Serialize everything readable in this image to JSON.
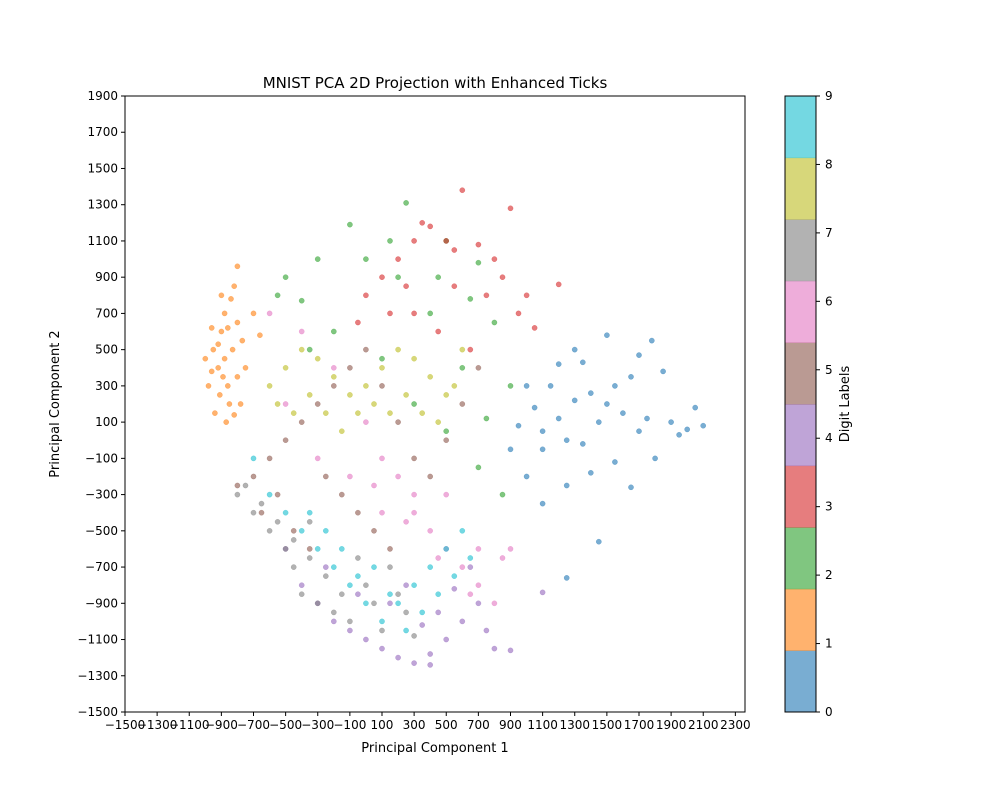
{
  "chart_data": {
    "type": "scatter",
    "title": "MNIST PCA 2D Projection with Enhanced Ticks",
    "xlabel": "Principal Component 1",
    "ylabel": "Principal Component 2",
    "xlim": [
      -1500,
      2360
    ],
    "ylim": [
      -1500,
      1900
    ],
    "x_ticks": [
      "−1500",
      "−1300",
      "−1100",
      "−900",
      "−700",
      "−500",
      "−300",
      "−100",
      "100",
      "300",
      "500",
      "700",
      "900",
      "1100",
      "1300",
      "1500",
      "1700",
      "1900",
      "2100",
      "2300"
    ],
    "y_ticks": [
      "−1500",
      "−1300",
      "−1100",
      "−900",
      "−700",
      "−500",
      "−300",
      "−100",
      "100",
      "300",
      "500",
      "700",
      "900",
      "1100",
      "1300",
      "1500",
      "1700",
      "1900"
    ],
    "grid": false,
    "marker_alpha": 0.6,
    "colorbar": {
      "label": "Digit Labels",
      "ticks": [
        "0",
        "1",
        "2",
        "3",
        "4",
        "5",
        "6",
        "7",
        "8",
        "9"
      ],
      "colors": [
        "#1f77b4",
        "#ff7f0e",
        "#2ca02c",
        "#d62728",
        "#9467bd",
        "#8c564b",
        "#e377c2",
        "#7f7f7f",
        "#bcbd22",
        "#17becf"
      ],
      "alpha": 0.6
    },
    "series": [
      {
        "label": 0,
        "color": "#1f77b4",
        "points": [
          [
            1300,
            220
          ],
          [
            1400,
            260
          ],
          [
            1200,
            120
          ],
          [
            1500,
            200
          ],
          [
            1600,
            150
          ],
          [
            1750,
            120
          ],
          [
            1900,
            100
          ],
          [
            2000,
            60
          ],
          [
            2100,
            80
          ],
          [
            2050,
            180
          ],
          [
            1850,
            380
          ],
          [
            1780,
            550
          ],
          [
            1700,
            470
          ],
          [
            1500,
            580
          ],
          [
            1350,
            430
          ],
          [
            1150,
            300
          ],
          [
            1050,
            180
          ],
          [
            950,
            80
          ],
          [
            900,
            -50
          ],
          [
            1000,
            -200
          ],
          [
            1100,
            -350
          ],
          [
            1250,
            -250
          ],
          [
            1400,
            -180
          ],
          [
            1550,
            -120
          ],
          [
            1650,
            -260
          ],
          [
            1800,
            -100
          ],
          [
            1450,
            -560
          ],
          [
            1250,
            -760
          ],
          [
            1000,
            300
          ],
          [
            1100,
            50
          ],
          [
            1250,
            0
          ],
          [
            1350,
            -20
          ],
          [
            1450,
            100
          ],
          [
            1550,
            300
          ],
          [
            1650,
            350
          ],
          [
            1300,
            500
          ],
          [
            1200,
            420
          ],
          [
            1100,
            -50
          ],
          [
            1700,
            50
          ],
          [
            1950,
            30
          ]
        ]
      },
      {
        "label": 1,
        "color": "#ff7f0e",
        "points": [
          [
            -950,
            500
          ],
          [
            -900,
            600
          ],
          [
            -880,
            700
          ],
          [
            -920,
            400
          ],
          [
            -860,
            300
          ],
          [
            -820,
            850
          ],
          [
            -800,
            960
          ],
          [
            -780,
            200
          ],
          [
            -750,
            400
          ],
          [
            -700,
            700
          ],
          [
            -660,
            580
          ],
          [
            -980,
            300
          ],
          [
            -1000,
            450
          ],
          [
            -940,
            150
          ],
          [
            -870,
            100
          ],
          [
            -830,
            500
          ],
          [
            -900,
            800
          ],
          [
            -960,
            620
          ],
          [
            -890,
            350
          ],
          [
            -850,
            200
          ],
          [
            -800,
            650
          ],
          [
            -770,
            550
          ],
          [
            -920,
            530
          ],
          [
            -880,
            450
          ],
          [
            -840,
            780
          ],
          [
            -910,
            250
          ],
          [
            -860,
            620
          ],
          [
            -800,
            350
          ],
          [
            -960,
            380
          ],
          [
            -820,
            140
          ]
        ]
      },
      {
        "label": 2,
        "color": "#2ca02c",
        "points": [
          [
            -400,
            770
          ],
          [
            -300,
            1000
          ],
          [
            -100,
            1190
          ],
          [
            250,
            1310
          ],
          [
            500,
            1100
          ],
          [
            700,
            980
          ],
          [
            900,
            300
          ],
          [
            800,
            650
          ],
          [
            -500,
            900
          ],
          [
            -200,
            600
          ],
          [
            100,
            450
          ],
          [
            300,
            200
          ],
          [
            500,
            50
          ],
          [
            700,
            -150
          ],
          [
            850,
            -300
          ],
          [
            600,
            400
          ],
          [
            400,
            700
          ],
          [
            200,
            900
          ],
          [
            0,
            1000
          ],
          [
            -350,
            500
          ],
          [
            150,
            1100
          ],
          [
            650,
            780
          ],
          [
            -550,
            800
          ],
          [
            450,
            900
          ],
          [
            750,
            120
          ]
        ]
      },
      {
        "label": 3,
        "color": "#d62728",
        "points": [
          [
            0,
            800
          ],
          [
            100,
            900
          ],
          [
            200,
            1000
          ],
          [
            300,
            1100
          ],
          [
            350,
            1200
          ],
          [
            400,
            1180
          ],
          [
            500,
            1100
          ],
          [
            550,
            1050
          ],
          [
            600,
            1380
          ],
          [
            700,
            1080
          ],
          [
            800,
            1000
          ],
          [
            900,
            1280
          ],
          [
            1000,
            800
          ],
          [
            1200,
            860
          ],
          [
            300,
            700
          ],
          [
            450,
            600
          ],
          [
            650,
            500
          ],
          [
            750,
            800
          ],
          [
            850,
            900
          ],
          [
            950,
            700
          ],
          [
            1050,
            620
          ],
          [
            -50,
            650
          ],
          [
            250,
            850
          ],
          [
            550,
            850
          ],
          [
            150,
            700
          ]
        ]
      },
      {
        "label": 4,
        "color": "#9467bd",
        "points": [
          [
            -500,
            -600
          ],
          [
            -400,
            -800
          ],
          [
            -300,
            -900
          ],
          [
            -200,
            -1000
          ],
          [
            -100,
            -1050
          ],
          [
            0,
            -1100
          ],
          [
            100,
            -1150
          ],
          [
            200,
            -1200
          ],
          [
            300,
            -1230
          ],
          [
            400,
            -1180
          ],
          [
            500,
            -1100
          ],
          [
            600,
            -1000
          ],
          [
            700,
            -900
          ],
          [
            800,
            -1150
          ],
          [
            900,
            -1160
          ],
          [
            650,
            -700
          ],
          [
            550,
            -820
          ],
          [
            450,
            -950
          ],
          [
            350,
            -1020
          ],
          [
            250,
            -800
          ],
          [
            150,
            -900
          ],
          [
            -50,
            -850
          ],
          [
            -250,
            -700
          ],
          [
            750,
            -1050
          ],
          [
            1100,
            -840
          ],
          [
            400,
            -1240
          ]
        ]
      },
      {
        "label": 5,
        "color": "#8c564b",
        "points": [
          [
            -700,
            -200
          ],
          [
            -600,
            -100
          ],
          [
            -500,
            0
          ],
          [
            -400,
            100
          ],
          [
            -300,
            200
          ],
          [
            -200,
            300
          ],
          [
            -100,
            400
          ],
          [
            0,
            500
          ],
          [
            100,
            300
          ],
          [
            200,
            100
          ],
          [
            300,
            -100
          ],
          [
            400,
            -200
          ],
          [
            500,
            0
          ],
          [
            600,
            200
          ],
          [
            700,
            400
          ],
          [
            -800,
            -250
          ],
          [
            -650,
            -400
          ],
          [
            -550,
            -300
          ],
          [
            -450,
            -500
          ],
          [
            -350,
            -600
          ],
          [
            -250,
            -200
          ],
          [
            -150,
            -300
          ],
          [
            -50,
            -400
          ],
          [
            50,
            -500
          ],
          [
            150,
            -600
          ]
        ]
      },
      {
        "label": 6,
        "color": "#e377c2",
        "points": [
          [
            -600,
            700
          ],
          [
            -400,
            600
          ],
          [
            -200,
            400
          ],
          [
            0,
            100
          ],
          [
            100,
            -100
          ],
          [
            200,
            -200
          ],
          [
            300,
            -400
          ],
          [
            400,
            -500
          ],
          [
            500,
            -600
          ],
          [
            600,
            -700
          ],
          [
            700,
            -800
          ],
          [
            800,
            -900
          ],
          [
            900,
            -600
          ],
          [
            700,
            -600
          ],
          [
            500,
            -300
          ],
          [
            300,
            -300
          ],
          [
            100,
            -400
          ],
          [
            -100,
            -200
          ],
          [
            -300,
            -100
          ],
          [
            -500,
            200
          ],
          [
            850,
            -650
          ],
          [
            650,
            -850
          ],
          [
            450,
            -650
          ],
          [
            250,
            -450
          ],
          [
            50,
            -250
          ]
        ]
      },
      {
        "label": 7,
        "color": "#7f7f7f",
        "points": [
          [
            -800,
            -300
          ],
          [
            -700,
            -400
          ],
          [
            -600,
            -500
          ],
          [
            -500,
            -600
          ],
          [
            -450,
            -700
          ],
          [
            -400,
            -850
          ],
          [
            -350,
            -650
          ],
          [
            -300,
            -900
          ],
          [
            -250,
            -750
          ],
          [
            -200,
            -950
          ],
          [
            -150,
            -850
          ],
          [
            -100,
            -1000
          ],
          [
            -50,
            -650
          ],
          [
            0,
            -800
          ],
          [
            50,
            -900
          ],
          [
            100,
            -1050
          ],
          [
            150,
            -700
          ],
          [
            200,
            -850
          ],
          [
            250,
            -950
          ],
          [
            300,
            -1080
          ],
          [
            -750,
            -250
          ],
          [
            -650,
            -350
          ],
          [
            -550,
            -450
          ],
          [
            -450,
            -550
          ],
          [
            -350,
            -450
          ]
        ]
      },
      {
        "label": 8,
        "color": "#bcbd22",
        "points": [
          [
            -600,
            300
          ],
          [
            -500,
            400
          ],
          [
            -400,
            500
          ],
          [
            -300,
            450
          ],
          [
            -200,
            350
          ],
          [
            -100,
            250
          ],
          [
            0,
            300
          ],
          [
            100,
            400
          ],
          [
            200,
            500
          ],
          [
            300,
            450
          ],
          [
            400,
            350
          ],
          [
            500,
            250
          ],
          [
            -550,
            200
          ],
          [
            -450,
            150
          ],
          [
            -350,
            250
          ],
          [
            -250,
            150
          ],
          [
            -150,
            50
          ],
          [
            -50,
            150
          ],
          [
            50,
            200
          ],
          [
            150,
            150
          ],
          [
            250,
            250
          ],
          [
            350,
            150
          ],
          [
            450,
            100
          ],
          [
            550,
            300
          ],
          [
            600,
            500
          ]
        ]
      },
      {
        "label": 9,
        "color": "#17becf",
        "points": [
          [
            -700,
            -100
          ],
          [
            -600,
            -300
          ],
          [
            -500,
            -400
          ],
          [
            -400,
            -500
          ],
          [
            -300,
            -600
          ],
          [
            -200,
            -700
          ],
          [
            -100,
            -800
          ],
          [
            0,
            -900
          ],
          [
            100,
            -1000
          ],
          [
            200,
            -900
          ],
          [
            300,
            -800
          ],
          [
            400,
            -700
          ],
          [
            500,
            -600
          ],
          [
            600,
            -500
          ],
          [
            -350,
            -400
          ],
          [
            -250,
            -500
          ],
          [
            -150,
            -600
          ],
          [
            -50,
            -750
          ],
          [
            50,
            -700
          ],
          [
            150,
            -850
          ],
          [
            250,
            -1050
          ],
          [
            350,
            -950
          ],
          [
            450,
            -850
          ],
          [
            550,
            -750
          ],
          [
            650,
            -650
          ]
        ]
      }
    ]
  }
}
